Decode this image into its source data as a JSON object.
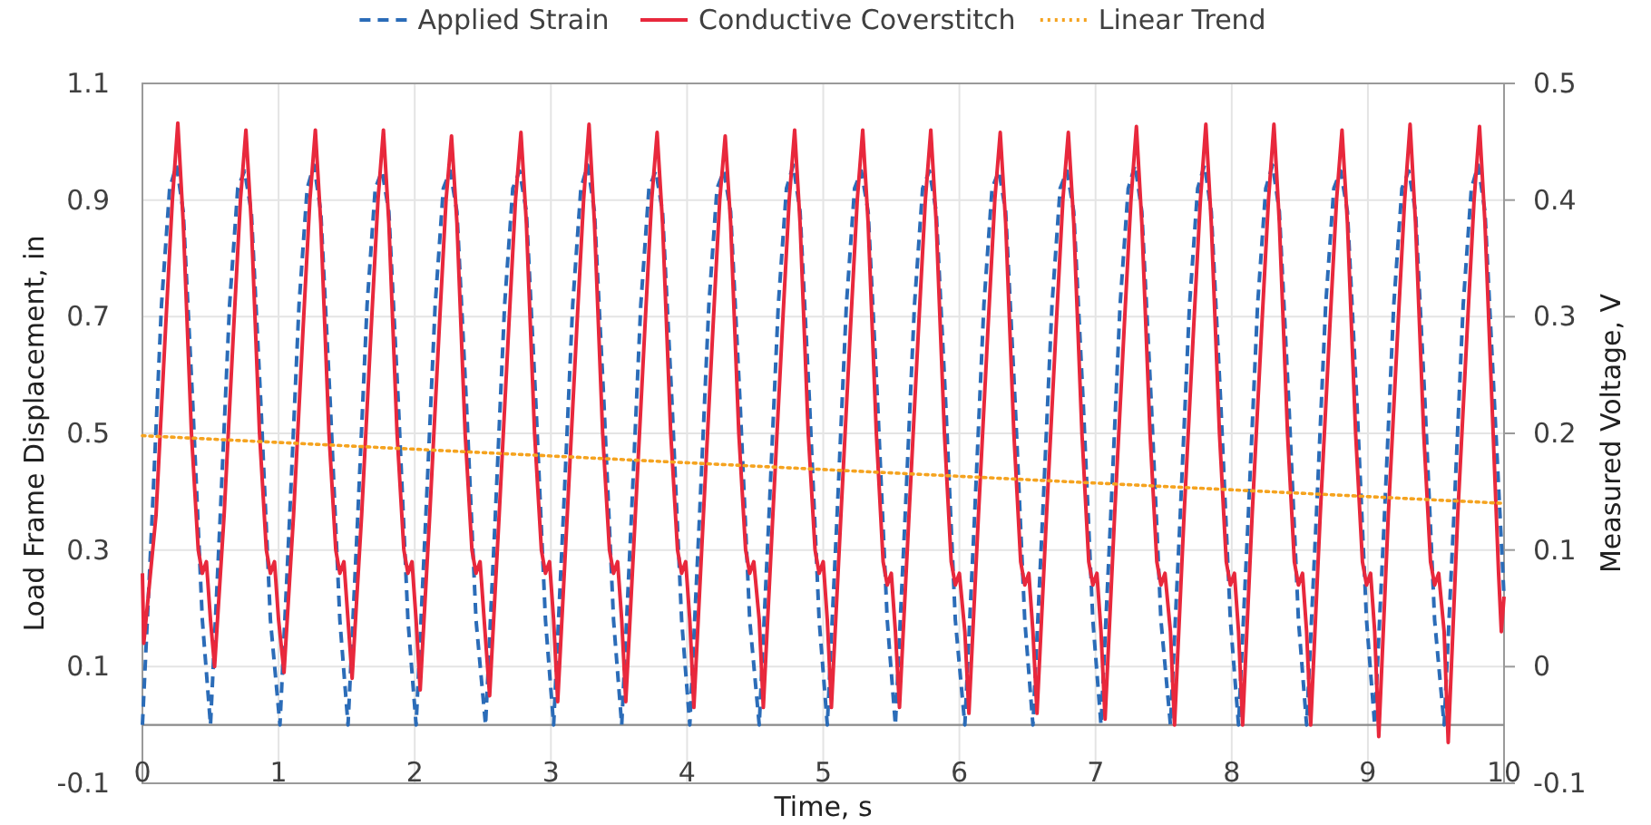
{
  "chart_data": {
    "type": "line",
    "xlabel": "Time, s",
    "ylabel": "Load Frame Displacement, in",
    "y2label": "Measured Voltage, V",
    "xlim": [
      0,
      10
    ],
    "xticks": [
      0,
      1,
      2,
      3,
      4,
      5,
      6,
      7,
      8,
      9,
      10
    ],
    "ylim": [
      -0.1,
      1.1
    ],
    "yticks": [
      -0.1,
      0.1,
      0.3,
      0.5,
      0.7,
      0.9,
      1.1
    ],
    "y2lim": [
      -0.1,
      0.5
    ],
    "y2ticks": [
      -0.1,
      0,
      0.1,
      0.2,
      0.3,
      0.4,
      0.5
    ],
    "grid": true,
    "legend": "top",
    "series": [
      {
        "name": "Applied Strain",
        "color": "#2b6cb8",
        "line_style": "dashed",
        "x": [
          0,
          0.07,
          0.14,
          0.2,
          0.25,
          0.3,
          0.37,
          0.44,
          0.5,
          0.57,
          0.64,
          0.7,
          0.75,
          0.8,
          0.87,
          0.94,
          1.01,
          1.08,
          1.15,
          1.21,
          1.26,
          1.31,
          1.38,
          1.45,
          1.51,
          1.58,
          1.65,
          1.71,
          1.76,
          1.81,
          1.88,
          1.95,
          2.01,
          2.08,
          2.15,
          2.21,
          2.26,
          2.31,
          2.38,
          2.45,
          2.52,
          2.59,
          2.66,
          2.72,
          2.77,
          2.82,
          2.89,
          2.96,
          3.02,
          3.09,
          3.16,
          3.22,
          3.27,
          3.32,
          3.39,
          3.46,
          3.52,
          3.59,
          3.66,
          3.72,
          3.77,
          3.82,
          3.89,
          3.96,
          4.02,
          4.09,
          4.16,
          4.22,
          4.27,
          4.32,
          4.39,
          4.46,
          4.53,
          4.6,
          4.67,
          4.73,
          4.78,
          4.83,
          4.9,
          4.97,
          5.03,
          5.1,
          5.17,
          5.23,
          5.28,
          5.33,
          5.4,
          5.47,
          5.53,
          5.6,
          5.67,
          5.73,
          5.78,
          5.83,
          5.9,
          5.97,
          6.04,
          6.11,
          6.18,
          6.24,
          6.29,
          6.34,
          6.41,
          6.48,
          6.54,
          6.61,
          6.68,
          6.74,
          6.79,
          6.84,
          6.91,
          6.98,
          7.04,
          7.11,
          7.18,
          7.24,
          7.29,
          7.34,
          7.41,
          7.48,
          7.55,
          7.62,
          7.69,
          7.75,
          7.8,
          7.85,
          7.92,
          7.99,
          8.05,
          8.12,
          8.19,
          8.25,
          8.3,
          8.35,
          8.42,
          8.49,
          8.55,
          8.62,
          8.69,
          8.75,
          8.8,
          8.85,
          8.92,
          8.99,
          9.05,
          9.12,
          9.19,
          9.25,
          9.3,
          9.35,
          9.42,
          9.49,
          9.56,
          9.63,
          9.7,
          9.76,
          9.81,
          9.86,
          9.93,
          10
        ],
        "values": [
          0,
          0.35,
          0.72,
          0.92,
          0.96,
          0.88,
          0.55,
          0.18,
          0,
          0.35,
          0.72,
          0.92,
          0.95,
          0.88,
          0.55,
          0.18,
          0,
          0.35,
          0.72,
          0.92,
          0.96,
          0.88,
          0.55,
          0.18,
          0,
          0.35,
          0.72,
          0.92,
          0.95,
          0.88,
          0.55,
          0.18,
          0,
          0.35,
          0.72,
          0.92,
          0.95,
          0.88,
          0.55,
          0.18,
          0,
          0.35,
          0.72,
          0.92,
          0.95,
          0.88,
          0.55,
          0.18,
          0,
          0.35,
          0.72,
          0.92,
          0.96,
          0.88,
          0.55,
          0.18,
          0,
          0.35,
          0.72,
          0.92,
          0.95,
          0.88,
          0.55,
          0.18,
          0,
          0.35,
          0.72,
          0.92,
          0.95,
          0.88,
          0.55,
          0.18,
          0,
          0.35,
          0.72,
          0.92,
          0.96,
          0.88,
          0.55,
          0.18,
          0,
          0.35,
          0.72,
          0.92,
          0.95,
          0.88,
          0.55,
          0.18,
          0,
          0.35,
          0.72,
          0.92,
          0.95,
          0.88,
          0.55,
          0.18,
          0,
          0.35,
          0.72,
          0.92,
          0.95,
          0.88,
          0.55,
          0.18,
          0,
          0.35,
          0.72,
          0.92,
          0.95,
          0.88,
          0.55,
          0.18,
          0,
          0.35,
          0.72,
          0.92,
          0.96,
          0.88,
          0.55,
          0.18,
          0,
          0.35,
          0.72,
          0.92,
          0.96,
          0.88,
          0.55,
          0.18,
          0,
          0.35,
          0.72,
          0.92,
          0.96,
          0.88,
          0.55,
          0.18,
          0,
          0.35,
          0.72,
          0.92,
          0.95,
          0.88,
          0.55,
          0.18,
          0,
          0.35,
          0.72,
          0.92,
          0.95,
          0.88,
          0.55,
          0.18,
          0,
          0.35,
          0.72,
          0.92,
          0.96,
          0.88,
          0.55,
          0.22
        ]
      },
      {
        "name": "Conductive Coverstitch",
        "color": "#e8283c",
        "line_style": "solid",
        "axis": "y2",
        "x": [
          0,
          0.01,
          0.1,
          0.17,
          0.22,
          0.26,
          0.3,
          0.36,
          0.41,
          0.44,
          0.47,
          0.5,
          0.53,
          0.6,
          0.67,
          0.72,
          0.76,
          0.8,
          0.86,
          0.91,
          0.94,
          0.97,
          1.0,
          1.04,
          1.11,
          1.18,
          1.23,
          1.27,
          1.31,
          1.37,
          1.42,
          1.45,
          1.48,
          1.51,
          1.54,
          1.61,
          1.68,
          1.73,
          1.77,
          1.81,
          1.87,
          1.92,
          1.95,
          1.98,
          2.01,
          2.04,
          2.11,
          2.18,
          2.23,
          2.27,
          2.31,
          2.37,
          2.42,
          2.45,
          2.48,
          2.51,
          2.55,
          2.62,
          2.69,
          2.74,
          2.78,
          2.82,
          2.88,
          2.93,
          2.96,
          2.99,
          3.02,
          3.05,
          3.12,
          3.19,
          3.24,
          3.28,
          3.32,
          3.38,
          3.43,
          3.46,
          3.49,
          3.52,
          3.55,
          3.62,
          3.69,
          3.74,
          3.78,
          3.82,
          3.88,
          3.93,
          3.96,
          3.99,
          4.02,
          4.05,
          4.12,
          4.19,
          4.24,
          4.28,
          4.32,
          4.38,
          4.43,
          4.46,
          4.49,
          4.53,
          4.56,
          4.63,
          4.7,
          4.75,
          4.79,
          4.83,
          4.89,
          4.94,
          4.97,
          5.0,
          5.03,
          5.06,
          5.13,
          5.2,
          5.25,
          5.29,
          5.33,
          5.39,
          5.44,
          5.47,
          5.5,
          5.53,
          5.56,
          5.63,
          5.7,
          5.75,
          5.79,
          5.83,
          5.89,
          5.94,
          5.97,
          6.0,
          6.04,
          6.07,
          6.14,
          6.21,
          6.26,
          6.3,
          6.34,
          6.4,
          6.45,
          6.48,
          6.51,
          6.54,
          6.57,
          6.64,
          6.71,
          6.76,
          6.8,
          6.84,
          6.9,
          6.95,
          6.98,
          7.01,
          7.04,
          7.07,
          7.14,
          7.21,
          7.26,
          7.3,
          7.34,
          7.4,
          7.45,
          7.48,
          7.51,
          7.55,
          7.58,
          7.65,
          7.72,
          7.77,
          7.81,
          7.85,
          7.91,
          7.96,
          7.99,
          8.02,
          8.05,
          8.08,
          8.15,
          8.22,
          8.27,
          8.31,
          8.35,
          8.41,
          8.46,
          8.49,
          8.52,
          8.55,
          8.58,
          8.65,
          8.72,
          8.77,
          8.81,
          8.85,
          8.91,
          8.96,
          8.99,
          9.02,
          9.05,
          9.08,
          9.15,
          9.22,
          9.27,
          9.31,
          9.35,
          9.41,
          9.46,
          9.49,
          9.52,
          9.56,
          9.59,
          9.66,
          9.73,
          9.78,
          9.82,
          9.86,
          9.92,
          9.96,
          9.98,
          10
        ],
        "values": [
          0.08,
          0.02,
          0.13,
          0.29,
          0.4,
          0.466,
          0.38,
          0.2,
          0.1,
          0.08,
          0.09,
          0.04,
          0,
          0.13,
          0.29,
          0.4,
          0.46,
          0.38,
          0.2,
          0.1,
          0.08,
          0.09,
          0.04,
          -0.005,
          0.13,
          0.29,
          0.4,
          0.46,
          0.38,
          0.2,
          0.1,
          0.08,
          0.09,
          0.04,
          -0.01,
          0.13,
          0.29,
          0.4,
          0.46,
          0.38,
          0.2,
          0.1,
          0.08,
          0.09,
          0.04,
          -0.02,
          0.13,
          0.29,
          0.4,
          0.455,
          0.38,
          0.2,
          0.1,
          0.08,
          0.09,
          0.04,
          -0.025,
          0.13,
          0.29,
          0.4,
          0.458,
          0.38,
          0.2,
          0.1,
          0.08,
          0.09,
          0.04,
          -0.03,
          0.13,
          0.29,
          0.4,
          0.465,
          0.38,
          0.2,
          0.1,
          0.08,
          0.09,
          0.04,
          -0.03,
          0.13,
          0.29,
          0.4,
          0.458,
          0.38,
          0.2,
          0.1,
          0.08,
          0.09,
          0.04,
          -0.035,
          0.13,
          0.29,
          0.4,
          0.455,
          0.38,
          0.2,
          0.1,
          0.08,
          0.09,
          0.04,
          -0.035,
          0.13,
          0.29,
          0.4,
          0.46,
          0.38,
          0.2,
          0.1,
          0.08,
          0.09,
          0.04,
          -0.035,
          0.13,
          0.29,
          0.4,
          0.46,
          0.38,
          0.2,
          0.09,
          0.07,
          0.08,
          0.03,
          -0.035,
          0.13,
          0.29,
          0.4,
          0.46,
          0.38,
          0.2,
          0.09,
          0.07,
          0.08,
          0.03,
          -0.04,
          0.13,
          0.29,
          0.4,
          0.458,
          0.38,
          0.2,
          0.09,
          0.07,
          0.08,
          0.03,
          -0.04,
          0.13,
          0.29,
          0.4,
          0.458,
          0.38,
          0.2,
          0.09,
          0.07,
          0.08,
          0.03,
          -0.045,
          0.13,
          0.29,
          0.4,
          0.463,
          0.38,
          0.2,
          0.09,
          0.07,
          0.08,
          0.03,
          -0.05,
          0.13,
          0.29,
          0.4,
          0.465,
          0.38,
          0.2,
          0.09,
          0.07,
          0.08,
          0.03,
          -0.05,
          0.13,
          0.29,
          0.4,
          0.465,
          0.38,
          0.2,
          0.09,
          0.07,
          0.08,
          0.03,
          -0.05,
          0.13,
          0.29,
          0.4,
          0.46,
          0.38,
          0.2,
          0.09,
          0.07,
          0.08,
          0.03,
          -0.06,
          0.13,
          0.29,
          0.4,
          0.465,
          0.38,
          0.2,
          0.09,
          0.07,
          0.08,
          0.03,
          -0.065,
          0.13,
          0.29,
          0.4,
          0.463,
          0.38,
          0.2,
          0.08,
          0.03,
          0.06
        ]
      },
      {
        "name": "Linear Trend",
        "color": "#f5a31f",
        "line_style": "dotted",
        "axis": "y2",
        "x": [
          0,
          10
        ],
        "values": [
          0.198,
          0.14
        ]
      }
    ]
  }
}
